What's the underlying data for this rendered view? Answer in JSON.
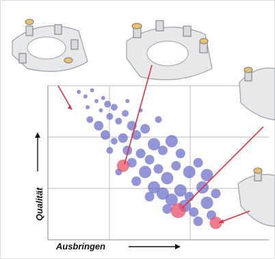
{
  "chart_data": {
    "type": "scatter",
    "x_label": "Ausbringen",
    "y_label": "Qualität",
    "xlim": [
      0,
      100
    ],
    "ylim": [
      0,
      100
    ],
    "series": [
      {
        "color": "#6f72c8",
        "x": [
          14,
          17,
          20,
          22,
          25,
          27,
          24,
          30,
          28,
          19,
          23,
          32,
          35,
          38,
          26,
          30,
          34,
          40,
          44,
          48,
          36,
          42,
          46,
          52,
          56,
          60,
          38,
          44,
          50,
          54,
          58,
          64,
          68,
          72,
          48,
          52,
          56,
          60,
          64,
          70,
          46,
          62,
          66,
          72,
          76,
          54,
          68,
          74,
          40,
          32,
          28,
          36,
          18,
          42,
          50
        ],
        "y": [
          96,
          93,
          97,
          90,
          92,
          88,
          84,
          86,
          80,
          78,
          74,
          77,
          82,
          74,
          68,
          64,
          66,
          68,
          72,
          62,
          58,
          56,
          52,
          58,
          64,
          56,
          50,
          44,
          46,
          40,
          48,
          44,
          50,
          42,
          34,
          30,
          26,
          32,
          28,
          34,
          28,
          22,
          18,
          24,
          30,
          20,
          12,
          16,
          38,
          44,
          58,
          90,
          86,
          84,
          78
        ],
        "sizes": [
          1,
          1,
          1,
          1,
          1,
          2,
          1,
          2,
          2,
          2,
          3,
          2,
          2,
          3,
          3,
          2,
          3,
          3,
          3,
          4,
          3,
          3,
          3,
          3,
          4,
          3,
          3,
          4,
          3,
          4,
          3,
          4,
          3,
          4,
          4,
          4,
          4,
          4,
          3,
          4,
          3,
          4,
          3,
          4,
          3,
          3,
          3,
          3,
          3,
          2,
          2,
          1,
          1,
          1,
          2
        ]
      },
      {
        "color": "#e8506a",
        "x": [
          34,
          59,
          76
        ],
        "y": [
          48,
          19,
          11
        ],
        "sizes": [
          4,
          5,
          4
        ]
      }
    ]
  }
}
